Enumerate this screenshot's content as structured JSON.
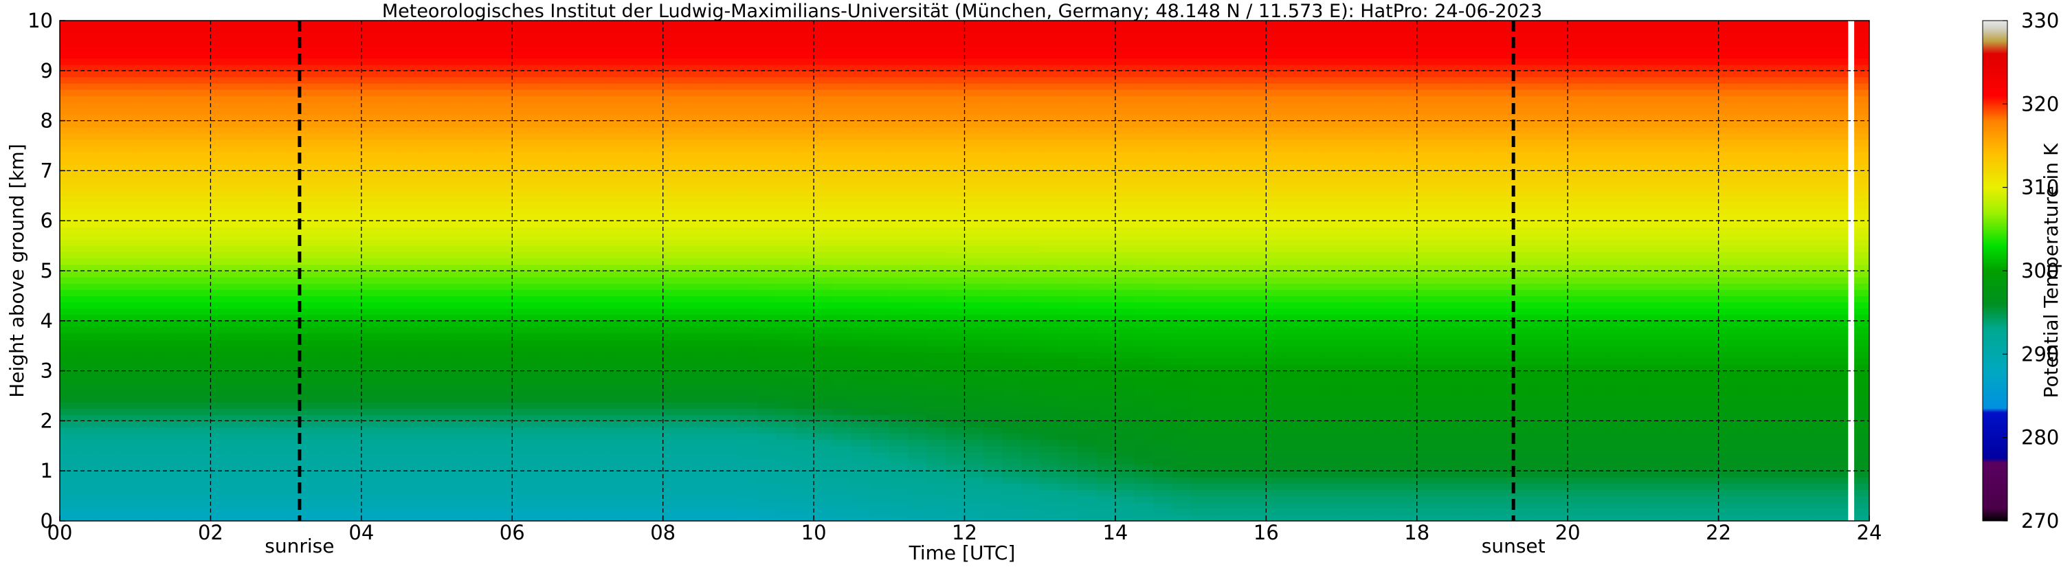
{
  "chart_data": {
    "type": "heatmap",
    "title": "Meteorologisches Institut der Ludwig-Maximilians-Universität (München, Germany; 48.148 N / 11.573 E):    HatPro: 24-06-2023",
    "xlabel": "Time [UTC]",
    "ylabel": "Height above ground [km]",
    "xlim": [
      0,
      24
    ],
    "ylim": [
      0,
      10
    ],
    "x_ticks": [
      0,
      2,
      4,
      6,
      8,
      10,
      12,
      14,
      16,
      18,
      20,
      22,
      24
    ],
    "x_tick_labels": [
      "00",
      "02",
      "04",
      "06",
      "08",
      "10",
      "12",
      "14",
      "16",
      "18",
      "20",
      "22",
      "24"
    ],
    "y_ticks": [
      0,
      1,
      2,
      3,
      4,
      5,
      6,
      7,
      8,
      9,
      10
    ],
    "y_tick_labels": [
      "0",
      "1",
      "2",
      "3",
      "4",
      "5",
      "6",
      "7",
      "8",
      "9",
      "10"
    ],
    "grid": true,
    "colorbar": {
      "label": "Potential Temperature in K",
      "min": 270,
      "max": 330,
      "ticks": [
        270,
        280,
        290,
        300,
        310,
        320,
        330
      ],
      "tick_labels": [
        "270",
        "280",
        "290",
        "300",
        "310",
        "320",
        "330"
      ],
      "color_stops": [
        {
          "value": 270,
          "color": "#000000"
        },
        {
          "value": 271.5,
          "color": "#4a0048"
        },
        {
          "value": 277,
          "color": "#5a0060"
        },
        {
          "value": 277.5,
          "color": "#0000a0"
        },
        {
          "value": 283,
          "color": "#0010c8"
        },
        {
          "value": 283.5,
          "color": "#0090e0"
        },
        {
          "value": 288,
          "color": "#00a8c0"
        },
        {
          "value": 293,
          "color": "#00a890"
        },
        {
          "value": 296,
          "color": "#009020"
        },
        {
          "value": 300,
          "color": "#00a000"
        },
        {
          "value": 303,
          "color": "#00e000"
        },
        {
          "value": 307,
          "color": "#a0f000"
        },
        {
          "value": 310,
          "color": "#e8f000"
        },
        {
          "value": 314,
          "color": "#ffc000"
        },
        {
          "value": 318,
          "color": "#ff8000"
        },
        {
          "value": 321,
          "color": "#ff0000"
        },
        {
          "value": 326,
          "color": "#e00000"
        },
        {
          "value": 327.5,
          "color": "#c0a040"
        },
        {
          "value": 329,
          "color": "#d0d0c0"
        },
        {
          "value": 330,
          "color": "#e8e8e8"
        }
      ]
    },
    "theta_profile": {
      "heights_km": [
        0,
        0.5,
        1,
        1.5,
        2,
        2.5,
        3,
        3.5,
        4,
        4.5,
        5,
        5.5,
        6,
        6.5,
        7,
        7.5,
        8,
        8.5,
        9,
        9.5,
        10
      ],
      "theta_night_K": [
        287.5,
        290,
        291,
        292,
        294,
        296.5,
        298.5,
        300,
        301.5,
        303.5,
        306,
        308.5,
        310,
        311.5,
        313,
        314.5,
        316.5,
        318,
        320,
        322,
        323
      ],
      "theta_afternoon_K": [
        293,
        294,
        296,
        297,
        298,
        299,
        300,
        301,
        302,
        304,
        306.5,
        308.5,
        310,
        311.5,
        313,
        314.5,
        316.5,
        318,
        320,
        322,
        323
      ]
    },
    "vertical_lines": [
      {
        "x": 3.18,
        "label": "sunrise",
        "style": "dashed",
        "color": "#000000"
      },
      {
        "x": 19.28,
        "label": "sunset",
        "style": "dashed",
        "color": "#000000"
      }
    ],
    "data_gap": {
      "x_start": 23.72,
      "x_end": 23.8
    }
  }
}
